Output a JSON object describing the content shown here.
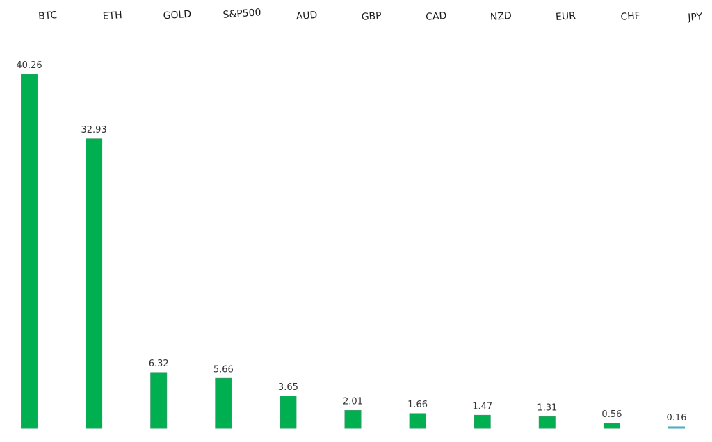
{
  "chart_data": {
    "type": "bar",
    "categories": [
      "BTC",
      "ETH",
      "GOLD",
      "S&P500",
      "AUD",
      "GBP",
      "CAD",
      "NZD",
      "EUR",
      "CHF",
      "JPY"
    ],
    "values": [
      40.26,
      32.93,
      6.32,
      5.66,
      3.65,
      2.01,
      1.66,
      1.47,
      1.31,
      0.56,
      0.16
    ],
    "value_labels": [
      "40.26",
      "32.93",
      "6.32",
      "5.66",
      "3.65",
      "2.01",
      "1.66",
      "1.47",
      "1.31",
      "0.56",
      "0.16"
    ],
    "title": "",
    "xlabel": "",
    "ylabel": "",
    "ylim": [
      0,
      40.26
    ],
    "grid": false,
    "legend": "none",
    "category_label_position": "top",
    "bar_color": "#00b050",
    "bar_edge_color": "#2e9e63",
    "last_bar_color": "#4bacc6"
  }
}
